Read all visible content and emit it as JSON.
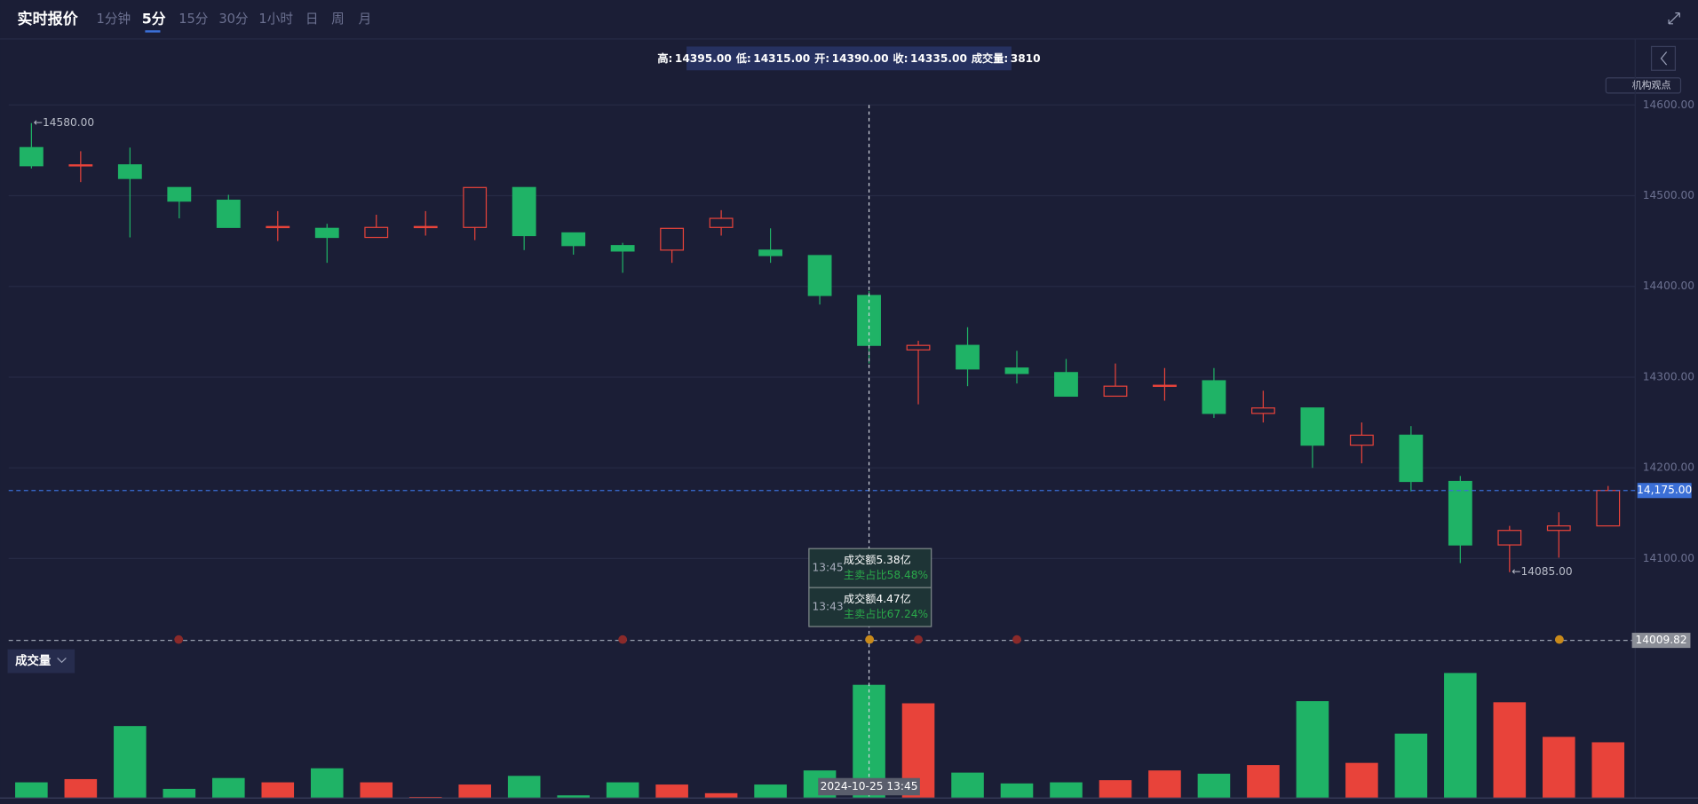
{
  "header": {
    "title": "实时报价",
    "tabs": [
      "1分钟",
      "5分",
      "15分",
      "30分",
      "1小时",
      "日",
      "周",
      "月"
    ],
    "active_tab": 1
  },
  "info_bar": [
    {
      "label": "高:",
      "value": "14395.00"
    },
    {
      "label": "低:",
      "value": "14315.00"
    },
    {
      "label": "开:",
      "value": "14390.00"
    },
    {
      "label": "收:",
      "value": "14335.00"
    },
    {
      "label": "成交量:",
      "value": "3810"
    }
  ],
  "side_button": "机构观点",
  "volume_button": "成交量",
  "tooltip": [
    {
      "time": "13:45",
      "amount": "成交额5.38亿",
      "ratio": "主卖占比58.48%"
    },
    {
      "time": "13:43",
      "amount": "成交额4.47亿",
      "ratio": "主卖占比67.24%"
    }
  ],
  "chart_data": {
    "type": "candlestick",
    "categories": [
      null,
      null,
      null,
      null,
      null,
      null,
      null,
      null,
      null,
      null,
      null,
      null,
      null,
      null,
      null,
      null,
      null,
      null,
      null,
      null,
      null,
      null,
      null,
      null,
      null,
      null,
      null,
      null,
      null,
      null,
      null,
      null,
      null
    ],
    "open": [
      14553,
      14533,
      14534,
      14509,
      14495,
      14465,
      14464,
      14454,
      14465,
      14465,
      14509,
      14459,
      14445,
      14440,
      14465,
      14440,
      14434,
      14390,
      14330,
      14335,
      14310,
      14305,
      14279,
      14290,
      14296,
      14260,
      14266,
      14225,
      14236,
      14185,
      14115,
      14131,
      14136
    ],
    "high": [
      14580,
      14549,
      14553,
      14509,
      14501,
      14483,
      14469,
      14479,
      14483,
      14509,
      14509,
      14459,
      14448,
      14464,
      14484,
      14464,
      14434,
      14395,
      14340,
      14355,
      14329,
      14320,
      14315,
      14310,
      14310,
      14285,
      14266,
      14250,
      14246,
      14191,
      14136,
      14151,
      14180
    ],
    "low": [
      14530,
      14515,
      14454,
      14475,
      14465,
      14450,
      14426,
      14454,
      14456,
      14451,
      14440,
      14435,
      14415,
      14426,
      14456,
      14426,
      14380,
      14315,
      14270,
      14290,
      14293,
      14279,
      14279,
      14274,
      14255,
      14250,
      14200,
      14205,
      14174,
      14095,
      14085,
      14101,
      14136
    ],
    "close": [
      14533,
      14534,
      14519,
      14494,
      14465,
      14466,
      14454,
      14465,
      14466,
      14509,
      14456,
      14445,
      14439,
      14464,
      14475,
      14434,
      14390,
      14335,
      14335,
      14309,
      14304,
      14279,
      14290,
      14291,
      14260,
      14266,
      14225,
      14236,
      14185,
      14115,
      14131,
      14136,
      14175
    ],
    "volume": [
      513,
      622,
      2416,
      293,
      659,
      513,
      988,
      513,
      20,
      439,
      732,
      73,
      513,
      439,
      146,
      439,
      915,
      3810,
      3185,
      842,
      476,
      513,
      586,
      915,
      805,
      1098,
      3258,
      1171,
      2160,
      4210,
      3221,
      2050,
      1867
    ],
    "up_color": "#e8433a",
    "down_color": "#1fb366",
    "ylim": [
      14000,
      14600
    ],
    "yticks": [
      {
        "value": 14600,
        "label": "14600.00"
      },
      {
        "value": 14500,
        "label": "14500.00"
      },
      {
        "value": 14400,
        "label": "14400.00"
      },
      {
        "value": 14300,
        "label": "14300.00"
      },
      {
        "value": 14200,
        "label": "14200.00"
      },
      {
        "value": 14100,
        "label": "14100.00"
      }
    ],
    "volume_ylim": [
      0,
      4500
    ],
    "grid": true,
    "annotations": [
      {
        "value": 14580,
        "label": "←14580.00"
      },
      {
        "value": 14085,
        "label": "←14085.00"
      }
    ],
    "price_line": {
      "value": 14175,
      "label": "14,175.00",
      "color": "#3b6fd6"
    },
    "ref_line": {
      "value": 14009.82
    },
    "crosshair": {
      "index": 17,
      "label": "2024-10-25 13:45"
    }
  }
}
